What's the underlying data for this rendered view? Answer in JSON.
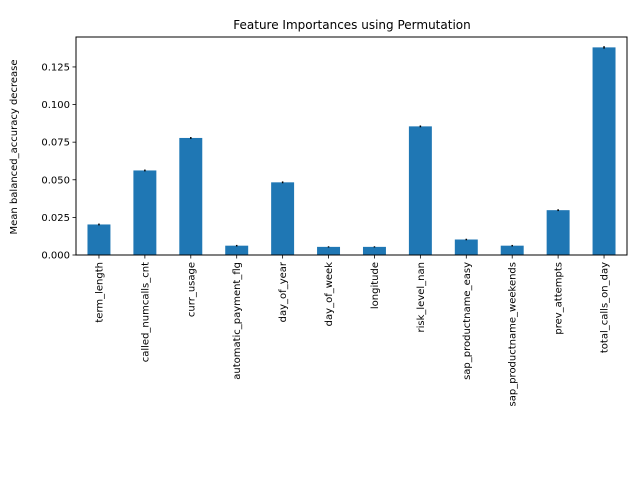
{
  "chart_data": {
    "type": "bar",
    "title": "Feature Importances using Permutation",
    "xlabel": "",
    "ylabel": "Mean balanced_accuracy decrease",
    "categories": [
      "term_length",
      "called_numcalls_cnt",
      "curr_usage",
      "automatic_payment_flg",
      "day_of_year",
      "day_of_week",
      "longitude",
      "risk_level_nan",
      "sap_productname_easy",
      "sap_productname_weekends",
      "prev_attempts",
      "total_calls_on_day"
    ],
    "values": [
      0.0203,
      0.0562,
      0.0778,
      0.0062,
      0.0483,
      0.0054,
      0.0054,
      0.0855,
      0.0103,
      0.0062,
      0.0298,
      0.138
    ],
    "errors": [
      0.0006,
      0.0006,
      0.0006,
      0.0005,
      0.0006,
      0.0004,
      0.0004,
      0.0006,
      0.0005,
      0.0005,
      0.0006,
      0.0008
    ],
    "yticks": [
      0.0,
      0.025,
      0.05,
      0.075,
      0.1,
      0.125
    ],
    "ytick_labels": [
      "0.000",
      "0.025",
      "0.050",
      "0.075",
      "0.100",
      "0.125"
    ],
    "ylim": [
      0,
      0.1449
    ],
    "grid": false,
    "legend": "none",
    "bar_color": "#1f77b4",
    "error_color": "#000000"
  }
}
